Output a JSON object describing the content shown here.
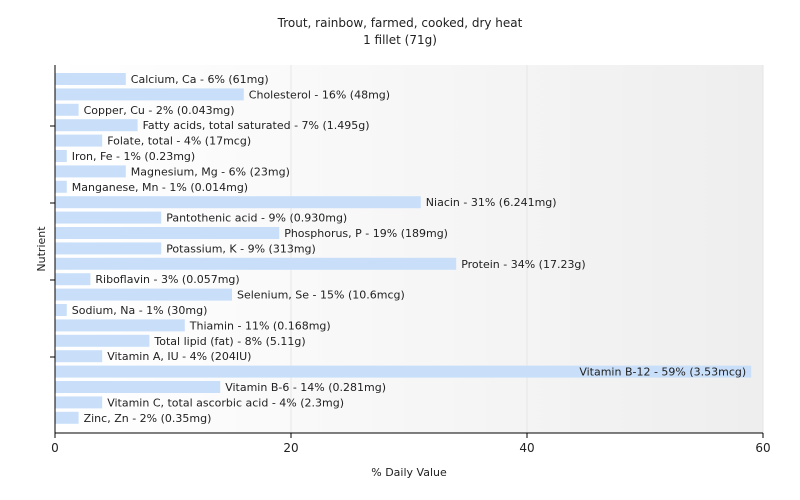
{
  "chart_data": {
    "type": "bar",
    "orientation": "horizontal",
    "title": "Trout, rainbow, farmed, cooked, dry heat",
    "subtitle": "1 fillet (71g)",
    "xlabel": "% Daily Value",
    "ylabel": "Nutrient",
    "xlim": [
      0,
      60
    ],
    "xticks": [
      0,
      20,
      40,
      60
    ],
    "grid": true,
    "bar_color": "#c9dff9",
    "categories": [
      "Calcium, Ca",
      "Cholesterol",
      "Copper, Cu",
      "Fatty acids, total saturated",
      "Folate, total",
      "Iron, Fe",
      "Magnesium, Mg",
      "Manganese, Mn",
      "Niacin",
      "Pantothenic acid",
      "Phosphorus, P",
      "Potassium, K",
      "Protein",
      "Riboflavin",
      "Selenium, Se",
      "Sodium, Na",
      "Thiamin",
      "Total lipid (fat)",
      "Vitamin A, IU",
      "Vitamin B-12",
      "Vitamin B-6",
      "Vitamin C, total ascorbic acid",
      "Zinc, Zn"
    ],
    "values": [
      6,
      16,
      2,
      7,
      4,
      1,
      6,
      1,
      31,
      9,
      19,
      9,
      34,
      3,
      15,
      1,
      11,
      8,
      4,
      59,
      14,
      4,
      2
    ],
    "labels": [
      "Calcium, Ca - 6% (61mg)",
      "Cholesterol - 16% (48mg)",
      "Copper, Cu - 2% (0.043mg)",
      "Fatty acids, total saturated - 7% (1.495g)",
      "Folate, total - 4% (17mcg)",
      "Iron, Fe - 1% (0.23mg)",
      "Magnesium, Mg - 6% (23mg)",
      "Manganese, Mn - 1% (0.014mg)",
      "Niacin - 31% (6.241mg)",
      "Pantothenic acid - 9% (0.930mg)",
      "Phosphorus, P - 19% (189mg)",
      "Potassium, K - 9% (313mg)",
      "Protein - 34% (17.23g)",
      "Riboflavin - 3% (0.057mg)",
      "Selenium, Se - 15% (10.6mcg)",
      "Sodium, Na - 1% (30mg)",
      "Thiamin - 11% (0.168mg)",
      "Total lipid (fat) - 8% (5.11g)",
      "Vitamin A, IU - 4% (204IU)",
      "Vitamin B-12 - 59% (3.53mcg)",
      "Vitamin B-6 - 14% (0.281mg)",
      "Vitamin C, total ascorbic acid - 4% (2.3mg)",
      "Zinc, Zn - 2% (0.35mg)"
    ]
  }
}
